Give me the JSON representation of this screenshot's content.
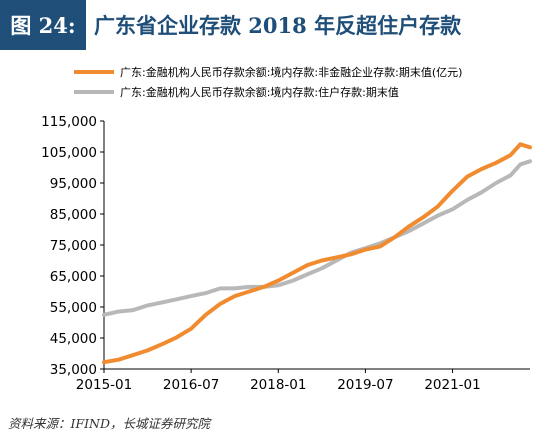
{
  "header": {
    "figure_number": "图 24:",
    "title": "广东省企业存款 2018 年反超住户存款"
  },
  "source": "资料来源：IFIND，长城证券研究院",
  "chart_data": {
    "type": "line",
    "title": "广东省企业存款 2018 年反超住户存款",
    "xlabel": "",
    "ylabel": "",
    "ylim": [
      35000,
      115000
    ],
    "yticks": [
      35000,
      45000,
      55000,
      65000,
      75000,
      85000,
      95000,
      105000,
      115000
    ],
    "ytick_labels": [
      "35,000",
      "45,000",
      "55,000",
      "65,000",
      "75,000",
      "85,000",
      "95,000",
      "105,000",
      "115,000"
    ],
    "xticks": [
      "2015-01",
      "2016-07",
      "2018-01",
      "2019-07",
      "2021-01"
    ],
    "xlim": [
      "2015-01",
      "2022-05"
    ],
    "grid": false,
    "legend_position": "top",
    "x": [
      "2015-01",
      "2015-04",
      "2015-07",
      "2015-10",
      "2016-01",
      "2016-04",
      "2016-07",
      "2016-10",
      "2017-01",
      "2017-04",
      "2017-07",
      "2017-10",
      "2018-01",
      "2018-04",
      "2018-07",
      "2018-10",
      "2019-01",
      "2019-04",
      "2019-07",
      "2019-10",
      "2020-01",
      "2020-04",
      "2020-07",
      "2020-10",
      "2021-01",
      "2021-04",
      "2021-07",
      "2021-10",
      "2022-01",
      "2022-03",
      "2022-05"
    ],
    "series": [
      {
        "name": "广东:金融机构人民币存款余额:境内存款:非金融企业存款:期末值(亿元)",
        "color": "#f08c2f",
        "values": [
          37200,
          38000,
          39500,
          41000,
          43000,
          45200,
          48000,
          52500,
          56000,
          58500,
          60000,
          61500,
          63500,
          66000,
          68500,
          70000,
          71000,
          72000,
          73500,
          74500,
          77500,
          81000,
          84000,
          87500,
          92500,
          97000,
          99500,
          101500,
          104000,
          107500,
          106500
        ]
      },
      {
        "name": "广东:金融机构人民币存款余额:境内存款:住户存款:期末值",
        "color": "#b8b8b8",
        "values": [
          52500,
          53500,
          54000,
          55500,
          56500,
          57500,
          58500,
          59500,
          61000,
          61000,
          61500,
          61500,
          62000,
          63500,
          65500,
          67500,
          70000,
          72500,
          74000,
          75500,
          77500,
          79500,
          82000,
          84500,
          86500,
          89500,
          92000,
          95000,
          97500,
          101000,
          102000
        ]
      }
    ]
  }
}
